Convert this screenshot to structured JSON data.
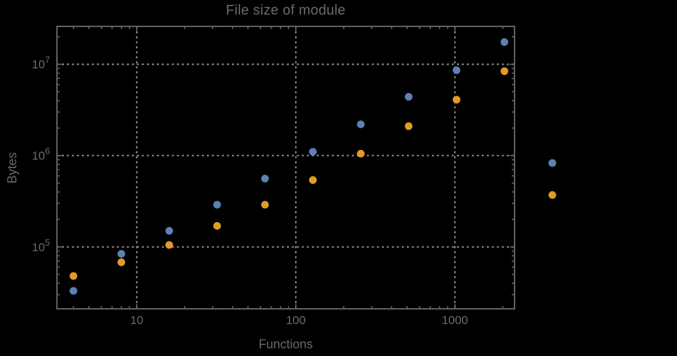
{
  "page": {
    "background": "#000000"
  },
  "chart_data": {
    "type": "scatter",
    "title": "File size of module",
    "xlabel": "Functions",
    "ylabel": "Bytes",
    "xscale": "log",
    "yscale": "log",
    "xlim": [
      3.15,
      2370
    ],
    "ylim": [
      21000,
      26000000
    ],
    "grid": "dotted",
    "frame": true,
    "legend": "none",
    "x_ticks": [
      {
        "value": 10,
        "label": "10"
      },
      {
        "value": 100,
        "label": "100"
      },
      {
        "value": 1000,
        "label": "1000"
      }
    ],
    "y_ticks": [
      {
        "value": 100000,
        "base": "10",
        "exp": "5"
      },
      {
        "value": 1000000,
        "base": "10",
        "exp": "6"
      },
      {
        "value": 10000000,
        "base": "10",
        "exp": "7"
      }
    ],
    "series": [
      {
        "name": "blue-series",
        "color": "#5E81B5",
        "points": [
          [
            4,
            33000
          ],
          [
            8,
            84000
          ],
          [
            16,
            150000
          ],
          [
            32,
            290000
          ],
          [
            64,
            560000
          ],
          [
            128,
            1100000
          ],
          [
            256,
            2200000
          ],
          [
            512,
            4400000
          ],
          [
            1024,
            8600000
          ],
          [
            2048,
            17500000
          ],
          [
            4096,
            830000
          ]
        ]
      },
      {
        "name": "orange-series",
        "color": "#E19C24",
        "points": [
          [
            4,
            48000
          ],
          [
            8,
            68000
          ],
          [
            16,
            105000
          ],
          [
            32,
            170000
          ],
          [
            64,
            290000
          ],
          [
            128,
            540000
          ],
          [
            256,
            1050000
          ],
          [
            512,
            2100000
          ],
          [
            1024,
            4100000
          ],
          [
            2048,
            8400000
          ],
          [
            4096,
            370000
          ]
        ]
      }
    ]
  },
  "colors": {
    "frame": "#636363",
    "grid": "#8d8d8d",
    "text": "#6b6b6b",
    "series1": "#5E81B5",
    "series2": "#E19C24"
  }
}
